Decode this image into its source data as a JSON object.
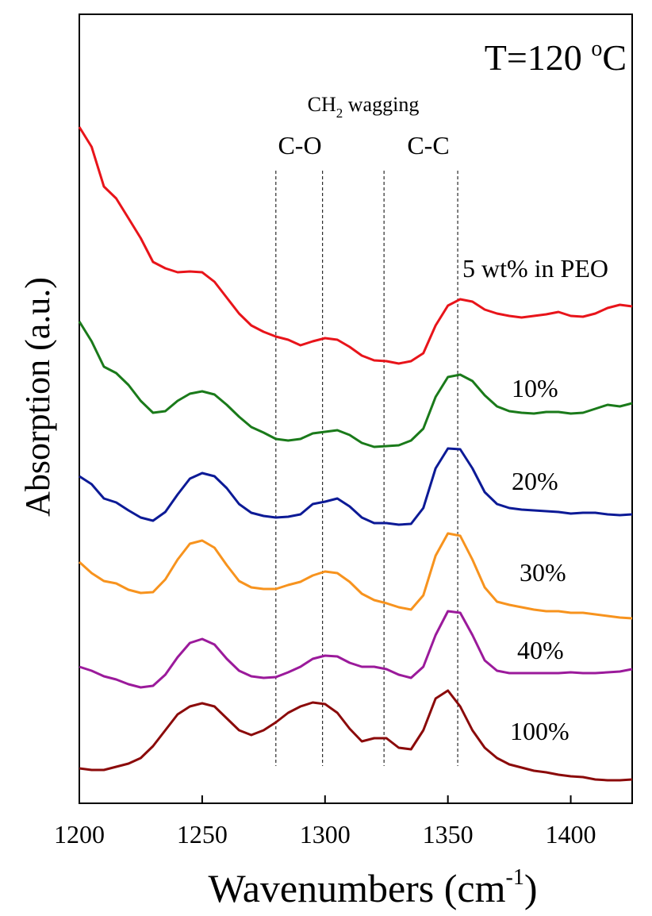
{
  "chart_data": {
    "type": "line",
    "title": {
      "main": "T=120 ",
      "sup": "o",
      "rest": "C"
    },
    "xlabel": {
      "main": "Wavenumbers (cm",
      "sup": "-1",
      "rest": ")"
    },
    "ylabel": "Absorption (a.u.)",
    "annotation_title": {
      "main": "CH",
      "sub": "2",
      "rest": " wagging"
    },
    "annotations": [
      "C-O",
      "C-C"
    ],
    "reference_lines": [
      1280,
      1299,
      1324,
      1354
    ],
    "xlim": [
      1200,
      1425
    ],
    "xticks": [
      1200,
      1250,
      1300,
      1350,
      1400
    ],
    "ylim": [
      0,
      994
    ],
    "x": [
      1200,
      1205,
      1210,
      1215,
      1220,
      1225,
      1230,
      1235,
      1240,
      1245,
      1250,
      1255,
      1260,
      1265,
      1270,
      1275,
      1280,
      1285,
      1290,
      1295,
      1300,
      1305,
      1310,
      1315,
      1320,
      1325,
      1330,
      1335,
      1340,
      1345,
      1350,
      1355,
      1360,
      1365,
      1370,
      1375,
      1380,
      1385,
      1390,
      1395,
      1400,
      1405,
      1410,
      1415,
      1420,
      1425
    ],
    "series": [
      {
        "name": "5 wt% in PEO",
        "color": "#e8141a",
        "values": [
          852,
          827,
          777,
          762,
          737,
          712,
          682,
          674,
          669,
          670,
          669,
          657,
          637,
          617,
          602,
          594,
          588,
          584,
          577,
          582,
          586,
          584,
          575,
          564,
          558,
          557,
          554,
          557,
          567,
          602,
          627,
          635,
          632,
          622,
          617,
          614,
          612,
          614,
          616,
          619,
          614,
          613,
          617,
          624,
          628,
          626
        ]
      },
      {
        "name": "10%",
        "color": "#1a7a1a",
        "values": [
          607,
          582,
          550,
          542,
          527,
          507,
          492,
          494,
          507,
          516,
          519,
          515,
          502,
          487,
          474,
          467,
          459,
          457,
          459,
          466,
          468,
          470,
          464,
          454,
          449,
          450,
          451,
          457,
          472,
          512,
          537,
          540,
          532,
          514,
          500,
          494,
          492,
          491,
          493,
          493,
          491,
          492,
          497,
          502,
          500,
          504
        ]
      },
      {
        "name": "20%",
        "color": "#0c1a96",
        "values": [
          412,
          402,
          384,
          379,
          369,
          360,
          356,
          367,
          389,
          409,
          416,
          412,
          397,
          377,
          366,
          362,
          360,
          361,
          364,
          377,
          380,
          384,
          374,
          360,
          353,
          353,
          351,
          352,
          372,
          422,
          447,
          446,
          422,
          392,
          377,
          372,
          370,
          369,
          368,
          367,
          365,
          366,
          366,
          364,
          363,
          364
        ]
      },
      {
        "name": "30%",
        "color": "#f7931e",
        "values": [
          304,
          290,
          280,
          277,
          269,
          265,
          266,
          282,
          307,
          327,
          331,
          322,
          300,
          280,
          272,
          270,
          270,
          275,
          279,
          287,
          292,
          290,
          279,
          264,
          256,
          252,
          247,
          244,
          262,
          312,
          340,
          337,
          307,
          272,
          254,
          250,
          247,
          244,
          242,
          242,
          240,
          240,
          238,
          236,
          234,
          233
        ]
      },
      {
        "name": "40%",
        "color": "#9b1a9b",
        "values": [
          172,
          167,
          160,
          156,
          150,
          146,
          148,
          162,
          184,
          202,
          207,
          200,
          182,
          167,
          160,
          158,
          159,
          165,
          172,
          182,
          186,
          185,
          177,
          172,
          172,
          169,
          162,
          158,
          172,
          212,
          242,
          240,
          212,
          180,
          167,
          164,
          164,
          164,
          164,
          164,
          165,
          164,
          164,
          165,
          166,
          169
        ]
      },
      {
        "name": "100%",
        "color": "#8b0a0a",
        "values": [
          44,
          42,
          42,
          46,
          50,
          57,
          72,
          92,
          112,
          122,
          126,
          122,
          107,
          92,
          86,
          92,
          102,
          114,
          122,
          127,
          125,
          114,
          94,
          78,
          82,
          82,
          70,
          68,
          92,
          132,
          142,
          122,
          92,
          70,
          57,
          49,
          45,
          41,
          39,
          36,
          34,
          33,
          30,
          29,
          29,
          30
        ]
      }
    ]
  }
}
